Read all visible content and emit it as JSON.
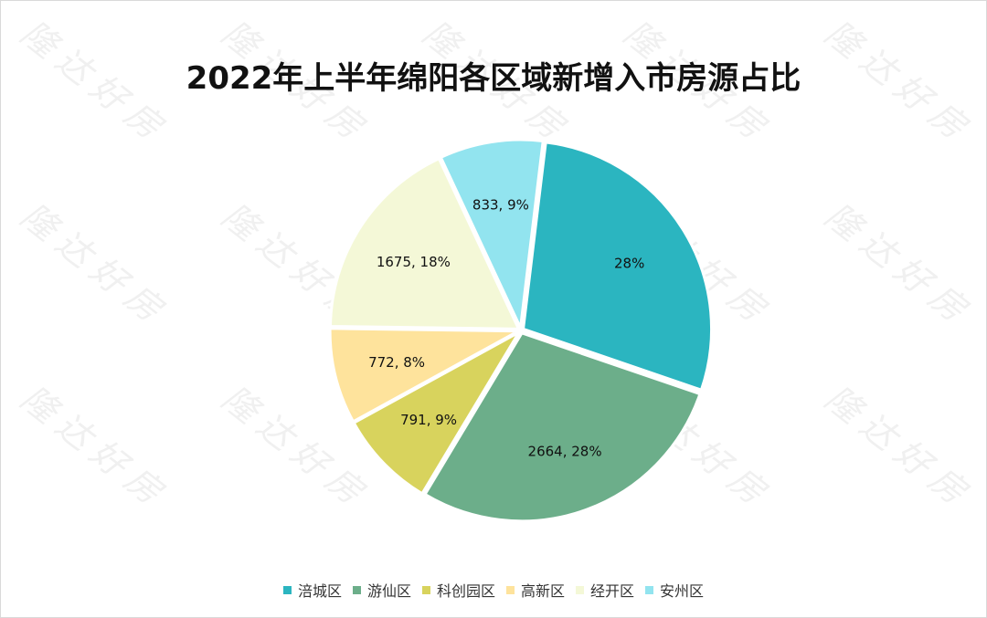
{
  "watermark": "隆达好房",
  "chart_data": {
    "type": "pie",
    "title": "2022年上半年绵阳各区域新增入市房源占比",
    "legend_position": "bottom",
    "slices": [
      {
        "name": "涪城区",
        "value": 2664,
        "label": "28%",
        "color": "#2bb5c0"
      },
      {
        "name": "游仙区",
        "value": 2664,
        "label": "2664, 28%",
        "color": "#6cae8a"
      },
      {
        "name": "科创园区",
        "value": 791,
        "label": "791, 9%",
        "color": "#d8d35d"
      },
      {
        "name": "高新区",
        "value": 772,
        "label": "772, 8%",
        "color": "#fee39c"
      },
      {
        "name": "经开区",
        "value": 1675,
        "label": "1675, 18%",
        "color": "#f4f8d7"
      },
      {
        "name": "安州区",
        "value": 833,
        "label": "833, 9%",
        "color": "#92e4ef"
      }
    ]
  }
}
